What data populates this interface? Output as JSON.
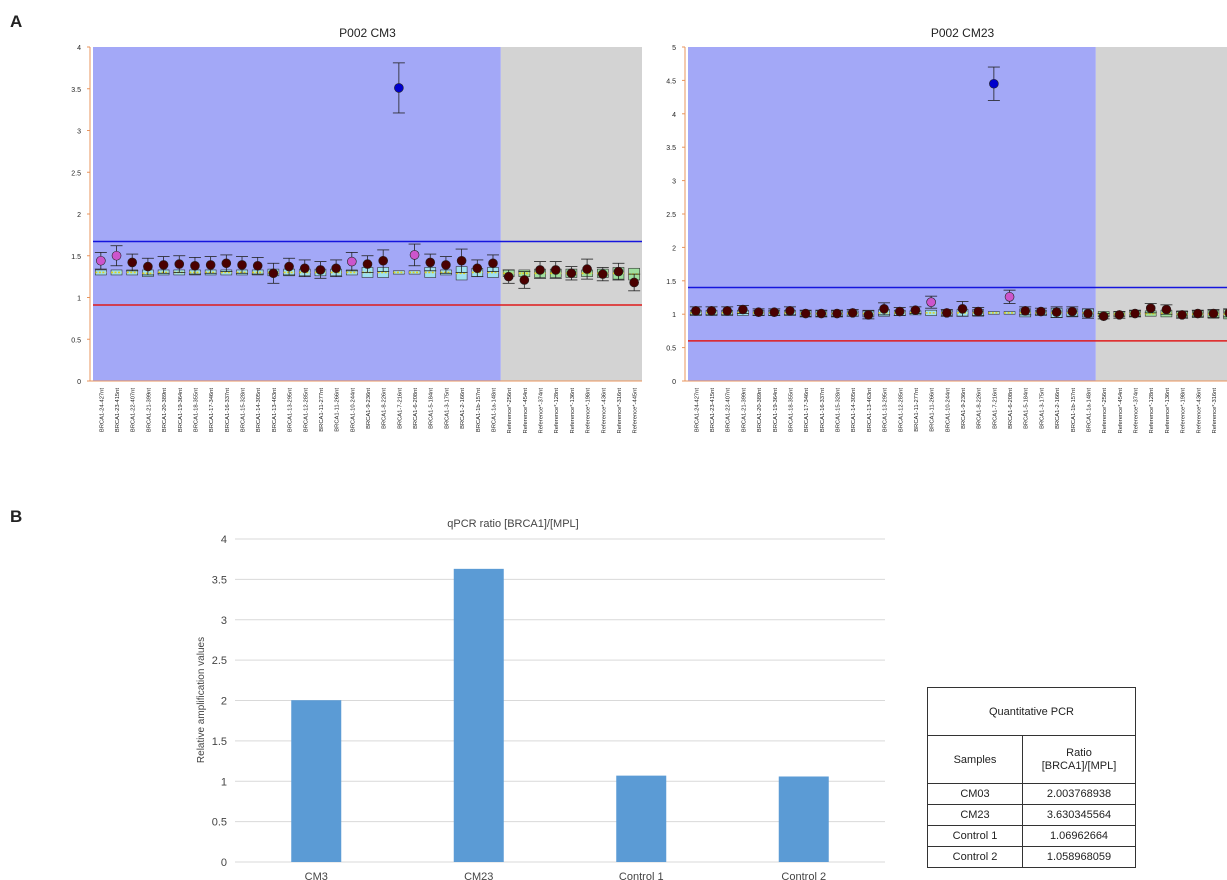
{
  "panel_labels": {
    "a": "A",
    "b": "B"
  },
  "chart_data": [
    {
      "type": "scatter",
      "title": "P002 CM3",
      "ylim": [
        0,
        4
      ],
      "yticks": [
        "0",
        "0.5",
        "1",
        "1.5",
        "2",
        "2.5",
        "3",
        "3.5",
        "4"
      ],
      "upper_threshold": 1.67,
      "lower_threshold": 0.91,
      "probes": [
        {
          "label": "BRCA1-24-427nt",
          "value": 1.44,
          "err": 0.1,
          "box_center": 1.3,
          "box_half": 0.03,
          "color": "#cc55cc",
          "region": "target"
        },
        {
          "label": "BRCA1-23-415nt",
          "value": 1.5,
          "err": 0.12,
          "box_center": 1.3,
          "box_half": 0.03,
          "color": "#cc55cc",
          "region": "target"
        },
        {
          "label": "BRCA1-22-407nt",
          "value": 1.42,
          "err": 0.1,
          "box_center": 1.3,
          "box_half": 0.03,
          "color": "#4a0000",
          "region": "target"
        },
        {
          "label": "BRCA1-21-399nt",
          "value": 1.37,
          "err": 0.1,
          "box_center": 1.29,
          "box_half": 0.04,
          "color": "#4a0000",
          "region": "target"
        },
        {
          "label": "BRCA1-20-389nt",
          "value": 1.39,
          "err": 0.1,
          "box_center": 1.3,
          "box_half": 0.03,
          "color": "#4a0000",
          "region": "target"
        },
        {
          "label": "BRCA1-19-364nt",
          "value": 1.4,
          "err": 0.1,
          "box_center": 1.3,
          "box_half": 0.03,
          "color": "#4a0000",
          "region": "target"
        },
        {
          "label": "BRCA1-18-355nt",
          "value": 1.38,
          "err": 0.1,
          "box_center": 1.3,
          "box_half": 0.03,
          "color": "#4a0000",
          "region": "target"
        },
        {
          "label": "BRCA1-17-346nt",
          "value": 1.39,
          "err": 0.1,
          "box_center": 1.3,
          "box_half": 0.03,
          "color": "#4a0000",
          "region": "target"
        },
        {
          "label": "BRCA1-16-337nt",
          "value": 1.41,
          "err": 0.1,
          "box_center": 1.3,
          "box_half": 0.03,
          "color": "#4a0000",
          "region": "target"
        },
        {
          "label": "BRCA1-15-328nt",
          "value": 1.39,
          "err": 0.1,
          "box_center": 1.3,
          "box_half": 0.03,
          "color": "#4a0000",
          "region": "target"
        },
        {
          "label": "BRCA1-14-305nt",
          "value": 1.38,
          "err": 0.1,
          "box_center": 1.3,
          "box_half": 0.03,
          "color": "#4a0000",
          "region": "target"
        },
        {
          "label": "BRCA1-13-463nt",
          "value": 1.29,
          "err": 0.12,
          "box_center": 1.3,
          "box_half": 0.04,
          "color": "#4a0000",
          "region": "target"
        },
        {
          "label": "BRCA1-13-295nt",
          "value": 1.37,
          "err": 0.1,
          "box_center": 1.3,
          "box_half": 0.04,
          "color": "#4a0000",
          "region": "target"
        },
        {
          "label": "BRCA1-12-285nt",
          "value": 1.35,
          "err": 0.1,
          "box_center": 1.3,
          "box_half": 0.04,
          "color": "#4a0000",
          "region": "target"
        },
        {
          "label": "BRCA1-11-277nt",
          "value": 1.33,
          "err": 0.1,
          "box_center": 1.3,
          "box_half": 0.04,
          "color": "#4a0000",
          "region": "target"
        },
        {
          "label": "BRCA1-11-266nt",
          "value": 1.35,
          "err": 0.1,
          "box_center": 1.3,
          "box_half": 0.04,
          "color": "#4a0000",
          "region": "target"
        },
        {
          "label": "BRCA1-10-244nt",
          "value": 1.43,
          "err": 0.11,
          "box_center": 1.3,
          "box_half": 0.03,
          "color": "#cc55cc",
          "region": "target"
        },
        {
          "label": "BRCA1-9-236nt",
          "value": 1.4,
          "err": 0.1,
          "box_center": 1.3,
          "box_half": 0.06,
          "color": "#4a0000",
          "region": "target"
        },
        {
          "label": "BRCA1-8-226nt",
          "value": 1.44,
          "err": 0.13,
          "box_center": 1.3,
          "box_half": 0.06,
          "color": "#4a0000",
          "region": "target"
        },
        {
          "label": "BRCA1-7-216nt",
          "value": 3.51,
          "err": 0.3,
          "box_center": 1.3,
          "box_half": 0.02,
          "color": "#0000cc",
          "region": "target"
        },
        {
          "label": "BRCA1-6-208nt",
          "value": 1.51,
          "err": 0.13,
          "box_center": 1.3,
          "box_half": 0.02,
          "color": "#cc55cc",
          "region": "target"
        },
        {
          "label": "BRCA1-5-184nt",
          "value": 1.42,
          "err": 0.1,
          "box_center": 1.3,
          "box_half": 0.06,
          "color": "#4a0000",
          "region": "target"
        },
        {
          "label": "BRCA1-3-175nt",
          "value": 1.39,
          "err": 0.1,
          "box_center": 1.3,
          "box_half": 0.03,
          "color": "#4a0000",
          "region": "target"
        },
        {
          "label": "BRCA1-2-166nt",
          "value": 1.44,
          "err": 0.14,
          "box_center": 1.29,
          "box_half": 0.08,
          "color": "#4a0000",
          "region": "target"
        },
        {
          "label": "BRCA1-1b-157nt",
          "value": 1.35,
          "err": 0.1,
          "box_center": 1.3,
          "box_half": 0.05,
          "color": "#4a0000",
          "region": "target"
        },
        {
          "label": "BRCA1-1a-148nt",
          "value": 1.41,
          "err": 0.1,
          "box_center": 1.3,
          "box_half": 0.06,
          "color": "#4a0000",
          "region": "target"
        },
        {
          "label": "Reference*-256nt",
          "value": 1.25,
          "err": 0.08,
          "box_center": 1.29,
          "box_half": 0.04,
          "color": "#4a0000",
          "region": "reference"
        },
        {
          "label": "Reference*-454nt",
          "value": 1.21,
          "err": 0.1,
          "box_center": 1.29,
          "box_half": 0.04,
          "color": "#4a0000",
          "region": "reference"
        },
        {
          "label": "Reference*-374nt",
          "value": 1.33,
          "err": 0.1,
          "box_center": 1.29,
          "box_half": 0.05,
          "color": "#4a0000",
          "region": "reference"
        },
        {
          "label": "Reference*-128nt",
          "value": 1.33,
          "err": 0.1,
          "box_center": 1.29,
          "box_half": 0.05,
          "color": "#4a0000",
          "region": "reference"
        },
        {
          "label": "Reference*-136nt",
          "value": 1.29,
          "err": 0.08,
          "box_center": 1.29,
          "box_half": 0.05,
          "color": "#4a0000",
          "region": "reference"
        },
        {
          "label": "Reference*-198nt",
          "value": 1.34,
          "err": 0.12,
          "box_center": 1.29,
          "box_half": 0.04,
          "color": "#4a0000",
          "region": "reference"
        },
        {
          "label": "Reference*-436nt",
          "value": 1.28,
          "err": 0.08,
          "box_center": 1.29,
          "box_half": 0.05,
          "color": "#4a0000",
          "region": "reference"
        },
        {
          "label": "Reference*-316nt",
          "value": 1.31,
          "err": 0.1,
          "box_center": 1.29,
          "box_half": 0.07,
          "color": "#4a0000",
          "region": "reference"
        },
        {
          "label": "Reference*-445nt",
          "value": 1.18,
          "err": 0.1,
          "box_center": 1.28,
          "box_half": 0.07,
          "color": "#4a0000",
          "region": "reference"
        }
      ]
    },
    {
      "type": "scatter",
      "title": "P002 CM23",
      "ylim": [
        0,
        5
      ],
      "yticks": [
        "0",
        "0.5",
        "1",
        "1.5",
        "2",
        "2.5",
        "3",
        "3.5",
        "4",
        "4.5",
        "5"
      ],
      "upper_threshold": 1.4,
      "lower_threshold": 0.6,
      "probes": [
        {
          "label": "BRCA1-24-427nt",
          "value": 1.05,
          "err": 0.06,
          "box_center": 1.02,
          "box_half": 0.04,
          "color": "#4a0000",
          "region": "target"
        },
        {
          "label": "BRCA1-23-415nt",
          "value": 1.05,
          "err": 0.06,
          "box_center": 1.02,
          "box_half": 0.04,
          "color": "#4a0000",
          "region": "target"
        },
        {
          "label": "BRCA1-22-407nt",
          "value": 1.05,
          "err": 0.06,
          "box_center": 1.02,
          "box_half": 0.04,
          "color": "#4a0000",
          "region": "target"
        },
        {
          "label": "BRCA1-21-399nt",
          "value": 1.07,
          "err": 0.06,
          "box_center": 1.02,
          "box_half": 0.04,
          "color": "#4a0000",
          "region": "target"
        },
        {
          "label": "BRCA1-20-389nt",
          "value": 1.03,
          "err": 0.05,
          "box_center": 1.02,
          "box_half": 0.04,
          "color": "#4a0000",
          "region": "target"
        },
        {
          "label": "BRCA1-19-364nt",
          "value": 1.03,
          "err": 0.05,
          "box_center": 1.02,
          "box_half": 0.04,
          "color": "#4a0000",
          "region": "target"
        },
        {
          "label": "BRCA1-18-355nt",
          "value": 1.05,
          "err": 0.06,
          "box_center": 1.02,
          "box_half": 0.04,
          "color": "#4a0000",
          "region": "target"
        },
        {
          "label": "BRCA1-17-346nt",
          "value": 1.01,
          "err": 0.05,
          "box_center": 1.01,
          "box_half": 0.04,
          "color": "#4a0000",
          "region": "target"
        },
        {
          "label": "BRCA1-16-337nt",
          "value": 1.01,
          "err": 0.05,
          "box_center": 1.01,
          "box_half": 0.04,
          "color": "#4a0000",
          "region": "target"
        },
        {
          "label": "BRCA1-15-328nt",
          "value": 1.01,
          "err": 0.05,
          "box_center": 1.01,
          "box_half": 0.04,
          "color": "#4a0000",
          "region": "target"
        },
        {
          "label": "BRCA1-14-305nt",
          "value": 1.02,
          "err": 0.05,
          "box_center": 1.01,
          "box_half": 0.04,
          "color": "#4a0000",
          "region": "target"
        },
        {
          "label": "BRCA1-13-463nt",
          "value": 0.99,
          "err": 0.06,
          "box_center": 1.01,
          "box_half": 0.05,
          "color": "#4a0000",
          "region": "target"
        },
        {
          "label": "BRCA1-13-295nt",
          "value": 1.08,
          "err": 0.09,
          "box_center": 1.02,
          "box_half": 0.05,
          "color": "#4a0000",
          "region": "target"
        },
        {
          "label": "BRCA1-12-285nt",
          "value": 1.04,
          "err": 0.06,
          "box_center": 1.02,
          "box_half": 0.04,
          "color": "#4a0000",
          "region": "target"
        },
        {
          "label": "BRCA1-11-277nt",
          "value": 1.06,
          "err": 0.05,
          "box_center": 1.02,
          "box_half": 0.03,
          "color": "#4a0000",
          "region": "target"
        },
        {
          "label": "BRCA1-11-266nt",
          "value": 1.18,
          "err": 0.09,
          "box_center": 1.02,
          "box_half": 0.04,
          "color": "#cc55cc",
          "region": "target"
        },
        {
          "label": "BRCA1-10-244nt",
          "value": 1.02,
          "err": 0.05,
          "box_center": 1.02,
          "box_half": 0.04,
          "color": "#4a0000",
          "region": "target"
        },
        {
          "label": "BRCA1-9-236nt",
          "value": 1.08,
          "err": 0.11,
          "box_center": 1.02,
          "box_half": 0.05,
          "color": "#4a0000",
          "region": "target"
        },
        {
          "label": "BRCA1-8-226nt",
          "value": 1.04,
          "err": 0.06,
          "box_center": 1.02,
          "box_half": 0.05,
          "color": "#4a0000",
          "region": "target"
        },
        {
          "label": "BRCA1-7-216nt",
          "value": 4.45,
          "err": 0.25,
          "box_center": 1.02,
          "box_half": 0.02,
          "color": "#0000cc",
          "region": "target"
        },
        {
          "label": "BRCA1-6-208nt",
          "value": 1.26,
          "err": 0.1,
          "box_center": 1.02,
          "box_half": 0.02,
          "color": "#cc55cc",
          "region": "target"
        },
        {
          "label": "BRCA1-5-184nt",
          "value": 1.05,
          "err": 0.06,
          "box_center": 1.02,
          "box_half": 0.06,
          "color": "#4a0000",
          "region": "target"
        },
        {
          "label": "BRCA1-3-175nt",
          "value": 1.04,
          "err": 0.05,
          "box_center": 1.02,
          "box_half": 0.04,
          "color": "#4a0000",
          "region": "target"
        },
        {
          "label": "BRCA1-2-166nt",
          "value": 1.03,
          "err": 0.08,
          "box_center": 1.02,
          "box_half": 0.07,
          "color": "#4a0000",
          "region": "target"
        },
        {
          "label": "BRCA1-1b-157nt",
          "value": 1.04,
          "err": 0.07,
          "box_center": 1.02,
          "box_half": 0.06,
          "color": "#4a0000",
          "region": "target"
        },
        {
          "label": "BRCA1-1a-148nt",
          "value": 1.01,
          "err": 0.07,
          "box_center": 1.02,
          "box_half": 0.06,
          "color": "#4a0000",
          "region": "target"
        },
        {
          "label": "Reference*-256nt",
          "value": 0.97,
          "err": 0.04,
          "box_center": 1.0,
          "box_half": 0.04,
          "color": "#4a0000",
          "region": "reference"
        },
        {
          "label": "Reference*-454nt",
          "value": 0.99,
          "err": 0.05,
          "box_center": 1.0,
          "box_half": 0.04,
          "color": "#4a0000",
          "region": "reference"
        },
        {
          "label": "Reference*-374nt",
          "value": 1.01,
          "err": 0.05,
          "box_center": 1.01,
          "box_half": 0.04,
          "color": "#4a0000",
          "region": "reference"
        },
        {
          "label": "Reference*-128nt",
          "value": 1.09,
          "err": 0.07,
          "box_center": 1.01,
          "box_half": 0.04,
          "color": "#4a0000",
          "region": "reference"
        },
        {
          "label": "Reference*-136nt",
          "value": 1.07,
          "err": 0.07,
          "box_center": 1.01,
          "box_half": 0.05,
          "color": "#4a0000",
          "region": "reference"
        },
        {
          "label": "Reference*-198nt",
          "value": 0.99,
          "err": 0.05,
          "box_center": 1.0,
          "box_half": 0.05,
          "color": "#4a0000",
          "region": "reference"
        },
        {
          "label": "Reference*-436nt",
          "value": 1.01,
          "err": 0.05,
          "box_center": 1.0,
          "box_half": 0.05,
          "color": "#4a0000",
          "region": "reference"
        },
        {
          "label": "Reference*-316nt",
          "value": 1.01,
          "err": 0.06,
          "box_center": 1.0,
          "box_half": 0.06,
          "color": "#4a0000",
          "region": "reference"
        },
        {
          "label": "Reference*-445nt",
          "value": 1.02,
          "err": 0.06,
          "box_center": 1.0,
          "box_half": 0.07,
          "color": "#4a0000",
          "region": "reference"
        }
      ]
    },
    {
      "type": "bar",
      "title": "qPCR ratio [BRCA1]/[MPL]",
      "ylabel": "Relative amplification values",
      "xlabel": "",
      "ylim": [
        0,
        4
      ],
      "yticks": [
        "0",
        "0.5",
        "1",
        "1.5",
        "2",
        "2.5",
        "3",
        "3.5",
        "4"
      ],
      "categories": [
        "CM3",
        "CM23",
        "Control 1",
        "Control 2"
      ],
      "values": [
        2.003768938,
        3.630345564,
        1.06962664,
        1.058968059
      ],
      "bar_color": "#5b9bd5",
      "grid": true
    },
    {
      "type": "table",
      "title": "Quantitative PCR",
      "columns": [
        "Samples",
        "Ratio [BRCA1]/[MPL]"
      ],
      "rows": [
        [
          "CM03",
          "2.003768938"
        ],
        [
          "CM23",
          "3.630345564"
        ],
        [
          "Control 1",
          "1.06962664"
        ],
        [
          "Control 2",
          "1.058968059"
        ]
      ]
    }
  ]
}
